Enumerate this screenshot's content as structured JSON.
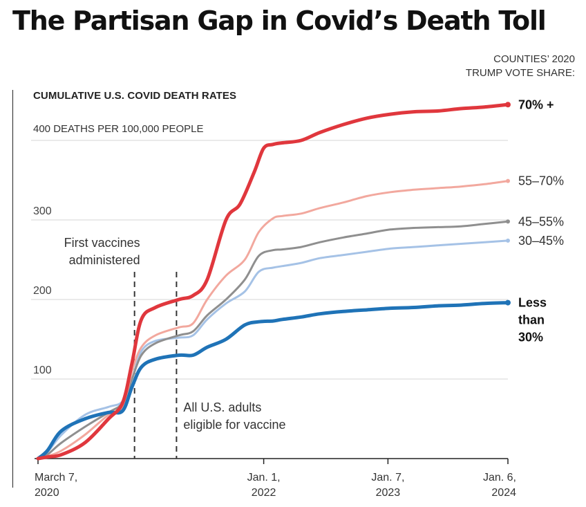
{
  "title": "The Partisan Gap in Covid’s Death Toll",
  "legend_header": [
    "COUNTIES’ 2020",
    "TRUMP VOTE SHARE:"
  ],
  "chart_data": {
    "type": "line",
    "title": "The Partisan Gap in Covid’s Death Toll",
    "subtitle": "CUMULATIVE U.S. COVID DEATH RATES",
    "unit_note": "400 DEATHS PER 100,000 PEOPLE",
    "ylim": [
      0,
      440
    ],
    "y_ticks": [
      {
        "value": 100,
        "label": "100"
      },
      {
        "value": 200,
        "label": "200"
      },
      {
        "value": 300,
        "label": "300"
      }
    ],
    "grid": true,
    "x_ticks": [
      {
        "t": 0,
        "lines": [
          "March 7,",
          "2020"
        ]
      },
      {
        "t": 0.4803,
        "lines": [
          "Jan. 1,",
          "2022"
        ]
      },
      {
        "t": 0.7447,
        "lines": [
          "Jan. 7,",
          "2023"
        ]
      },
      {
        "t": 1.0,
        "lines": [
          "Jan. 6,",
          "2024"
        ]
      }
    ],
    "events": [
      {
        "t": 0.2054,
        "lines": [
          "First vaccines",
          "administered"
        ]
      },
      {
        "t": 0.2947,
        "lines": [
          "All U.S. adults",
          "eligible for vaccine"
        ]
      }
    ],
    "series": [
      {
        "name": "70% +",
        "label_lines": [
          "70% +"
        ],
        "bold": true,
        "color": "#e0373d",
        "width": 5,
        "t": [
          0,
          0.02,
          0.05,
          0.1,
          0.15,
          0.18,
          0.2,
          0.22,
          0.25,
          0.3,
          0.33,
          0.36,
          0.4,
          0.43,
          0.46,
          0.48,
          0.5,
          0.52,
          0.56,
          0.6,
          0.65,
          0.7,
          0.75,
          0.8,
          0.85,
          0.9,
          0.95,
          1.0
        ],
        "values": [
          0,
          2,
          5,
          20,
          50,
          70,
          120,
          175,
          190,
          200,
          205,
          225,
          300,
          320,
          360,
          390,
          395,
          397,
          400,
          410,
          420,
          428,
          433,
          436,
          437,
          440,
          442,
          445
        ]
      },
      {
        "name": "55–70%",
        "label_lines": [
          "55–70%"
        ],
        "bold": false,
        "color": "#f2a89e",
        "width": 3,
        "t": [
          0,
          0.02,
          0.05,
          0.1,
          0.15,
          0.18,
          0.2,
          0.22,
          0.25,
          0.3,
          0.33,
          0.36,
          0.4,
          0.44,
          0.47,
          0.5,
          0.52,
          0.56,
          0.6,
          0.65,
          0.7,
          0.75,
          0.8,
          0.85,
          0.9,
          0.95,
          1.0
        ],
        "values": [
          0,
          3,
          10,
          30,
          55,
          65,
          110,
          140,
          155,
          165,
          170,
          200,
          230,
          250,
          285,
          302,
          305,
          308,
          315,
          322,
          330,
          335,
          338,
          340,
          342,
          345,
          349
        ]
      },
      {
        "name": "45–55%",
        "label_lines": [
          "45–55%"
        ],
        "bold": false,
        "color": "#8f8f8f",
        "width": 3,
        "t": [
          0,
          0.02,
          0.05,
          0.1,
          0.15,
          0.18,
          0.2,
          0.22,
          0.25,
          0.3,
          0.33,
          0.36,
          0.4,
          0.44,
          0.47,
          0.5,
          0.52,
          0.56,
          0.6,
          0.65,
          0.7,
          0.75,
          0.8,
          0.85,
          0.9,
          0.95,
          1.0
        ],
        "values": [
          0,
          5,
          20,
          40,
          58,
          70,
          100,
          130,
          145,
          155,
          160,
          180,
          200,
          225,
          255,
          262,
          263,
          266,
          272,
          278,
          283,
          288,
          290,
          291,
          292,
          295,
          298
        ]
      },
      {
        "name": "30–45%",
        "label_lines": [
          "30–45%"
        ],
        "bold": false,
        "color": "#a5c2e6",
        "width": 3,
        "t": [
          0,
          0.02,
          0.05,
          0.1,
          0.15,
          0.18,
          0.2,
          0.22,
          0.25,
          0.3,
          0.33,
          0.36,
          0.4,
          0.44,
          0.47,
          0.5,
          0.52,
          0.56,
          0.6,
          0.65,
          0.7,
          0.75,
          0.8,
          0.85,
          0.9,
          0.95,
          1.0
        ],
        "values": [
          0,
          8,
          30,
          55,
          65,
          72,
          100,
          135,
          148,
          152,
          155,
          175,
          195,
          210,
          235,
          240,
          242,
          246,
          252,
          256,
          260,
          264,
          266,
          268,
          270,
          272,
          274
        ]
      },
      {
        "name": "Less than 30%",
        "label_lines": [
          "Less",
          "than",
          "30%"
        ],
        "bold": true,
        "color": "#1f73b7",
        "width": 5,
        "t": [
          0,
          0.02,
          0.05,
          0.1,
          0.15,
          0.18,
          0.2,
          0.22,
          0.25,
          0.3,
          0.33,
          0.36,
          0.4,
          0.44,
          0.47,
          0.5,
          0.52,
          0.56,
          0.6,
          0.65,
          0.7,
          0.75,
          0.8,
          0.85,
          0.9,
          0.95,
          1.0
        ],
        "values": [
          0,
          10,
          35,
          50,
          58,
          60,
          90,
          115,
          125,
          130,
          130,
          140,
          150,
          168,
          172,
          173,
          175,
          178,
          182,
          185,
          187,
          189,
          190,
          192,
          193,
          195,
          196
        ]
      }
    ]
  }
}
